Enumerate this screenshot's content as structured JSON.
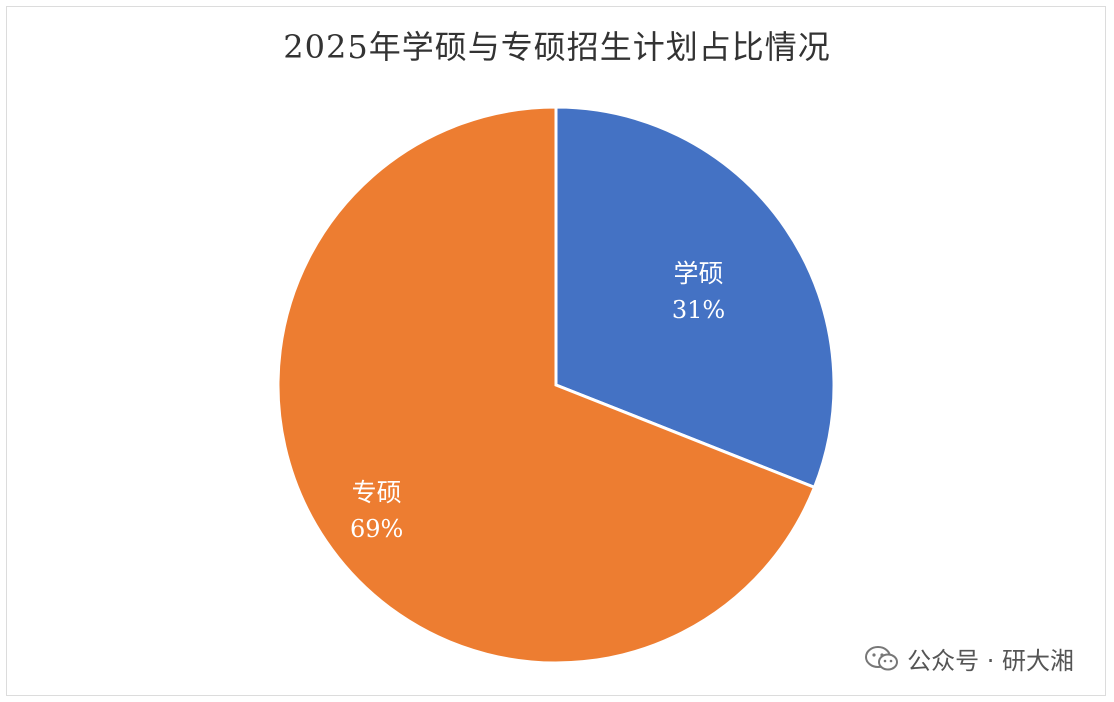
{
  "chart_data": {
    "type": "pie",
    "title": "2025年学硕与专硕招生计划占比情况",
    "slices": [
      {
        "label": "学硕",
        "value": 31,
        "value_label": "31%",
        "color": "#4472C4"
      },
      {
        "label": "专硕",
        "value": 69,
        "value_label": "69%",
        "color": "#ED7D31"
      }
    ],
    "start_angle_deg": 0,
    "direction": "clockwise",
    "legend": "none"
  },
  "watermark": {
    "text": "公众号 · 研大湘",
    "icon": "wechat-icon"
  }
}
